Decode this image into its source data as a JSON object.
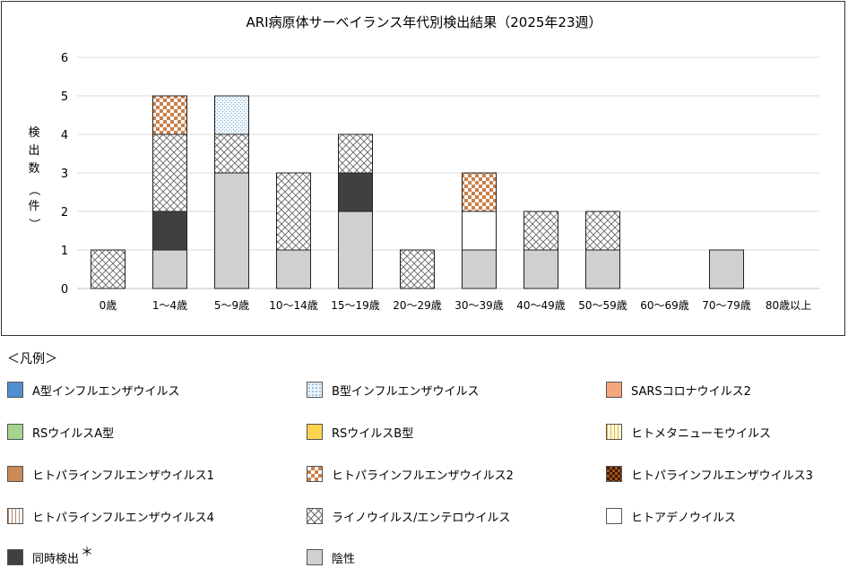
{
  "chart_data": {
    "type": "bar",
    "stacked": true,
    "title": "ARI病原体サーベイランス年代別検出結果（2025年23週）",
    "ylabel_chars": [
      "検",
      "出",
      "数",
      "（",
      "件",
      "）"
    ],
    "ylim": [
      0,
      6
    ],
    "yticks": [
      "0",
      "1",
      "2",
      "3",
      "4",
      "5",
      "6"
    ],
    "grid": true,
    "categories": [
      "0歳",
      "1～4歳",
      "5～9歳",
      "10～14歳",
      "15～19歳",
      "20～29歳",
      "30～39歳",
      "40～49歳",
      "50～59歳",
      "60～69歳",
      "70～79歳",
      "80歳以上"
    ],
    "series": [
      {
        "key": "fluA",
        "values": [
          0,
          0,
          0,
          0,
          0,
          0,
          0,
          0,
          0,
          0,
          0,
          0
        ]
      },
      {
        "key": "fluB",
        "values": [
          0,
          0,
          1,
          0,
          0,
          0,
          0,
          0,
          0,
          0,
          0,
          0
        ]
      },
      {
        "key": "sars2",
        "values": [
          0,
          0,
          0,
          0,
          0,
          0,
          0,
          0,
          0,
          0,
          0,
          0
        ]
      },
      {
        "key": "rsA",
        "values": [
          0,
          0,
          0,
          0,
          0,
          0,
          0,
          0,
          0,
          0,
          0,
          0
        ]
      },
      {
        "key": "rsB",
        "values": [
          0,
          0,
          0,
          0,
          0,
          0,
          0,
          0,
          0,
          0,
          0,
          0
        ]
      },
      {
        "key": "hmpv",
        "values": [
          0,
          0,
          0,
          0,
          0,
          0,
          0,
          0,
          0,
          0,
          0,
          0
        ]
      },
      {
        "key": "hpiv1",
        "values": [
          0,
          0,
          0,
          0,
          0,
          0,
          0,
          0,
          0,
          0,
          0,
          0
        ]
      },
      {
        "key": "hpiv2",
        "values": [
          0,
          1,
          0,
          0,
          0,
          0,
          1,
          0,
          0,
          0,
          0,
          0
        ]
      },
      {
        "key": "hpiv3",
        "values": [
          0,
          0,
          0,
          0,
          0,
          0,
          0,
          0,
          0,
          0,
          0,
          0
        ]
      },
      {
        "key": "hpiv4",
        "values": [
          0,
          0,
          0,
          0,
          0,
          0,
          0,
          0,
          0,
          0,
          0,
          0
        ]
      },
      {
        "key": "rhino",
        "values": [
          1,
          2,
          1,
          2,
          1,
          1,
          0,
          1,
          1,
          0,
          0,
          0
        ]
      },
      {
        "key": "adeno",
        "values": [
          0,
          0,
          0,
          0,
          0,
          0,
          1,
          0,
          0,
          0,
          0,
          0
        ]
      },
      {
        "key": "coinf",
        "values": [
          0,
          1,
          0,
          0,
          1,
          0,
          0,
          0,
          0,
          0,
          0,
          0
        ]
      },
      {
        "key": "neg",
        "values": [
          0,
          1,
          3,
          1,
          2,
          0,
          1,
          1,
          1,
          0,
          1,
          0
        ]
      }
    ],
    "stack_order": [
      "neg",
      "coinf",
      "adeno",
      "rhino",
      "hpiv4",
      "hpiv3",
      "hpiv2",
      "hpiv1",
      "hmpv",
      "rsB",
      "rsA",
      "sars2",
      "fluB",
      "fluA"
    ]
  },
  "legend": {
    "title": "＜凡例＞",
    "asterisk": "＊",
    "items": [
      {
        "key": "fluA",
        "label": "A型インフルエンザウイルス",
        "color": "#4f8fd0",
        "pattern": "solid"
      },
      {
        "key": "fluB",
        "label": "B型インフルエンザウイルス",
        "color": "#a9cce8",
        "pattern": "dots"
      },
      {
        "key": "sars2",
        "label": "SARSコロナウイルス2",
        "color": "#f4a77c",
        "pattern": "solid"
      },
      {
        "key": "rsA",
        "label": "RSウイルスA型",
        "color": "#a6d48c",
        "pattern": "solid"
      },
      {
        "key": "rsB",
        "label": "RSウイルスB型",
        "color": "#ffd34d",
        "pattern": "solid"
      },
      {
        "key": "hmpv",
        "label": "ヒトメタニューモウイルス",
        "color": "#e8d27a",
        "pattern": "vlines"
      },
      {
        "key": "hpiv1",
        "label": "ヒトパラインフルエンザウイルス1",
        "color": "#c98a55",
        "pattern": "solid"
      },
      {
        "key": "hpiv2",
        "label": "ヒトパラインフルエンザウイルス2",
        "color": "#c9804a",
        "pattern": "checker"
      },
      {
        "key": "hpiv3",
        "label": "ヒトパラインフルエンザウイルス3",
        "color": "#7a3a10",
        "pattern": "darkcheck"
      },
      {
        "key": "hpiv4",
        "label": "ヒトパラインフルエンザウイルス4",
        "color": "#c9a58a",
        "pattern": "vlines"
      },
      {
        "key": "rhino",
        "label": "ライノウイルス/エンテロウイルス",
        "color": "#777777",
        "pattern": "crosshatch"
      },
      {
        "key": "adeno",
        "label": "ヒトアデノウイルス",
        "color": "#ffffff",
        "pattern": "solid"
      },
      {
        "key": "coinf",
        "label": "同時検出",
        "color": "#404040",
        "pattern": "solid"
      },
      {
        "key": "neg",
        "label": "陰性",
        "color": "#d0d0d0",
        "pattern": "solid"
      }
    ]
  }
}
